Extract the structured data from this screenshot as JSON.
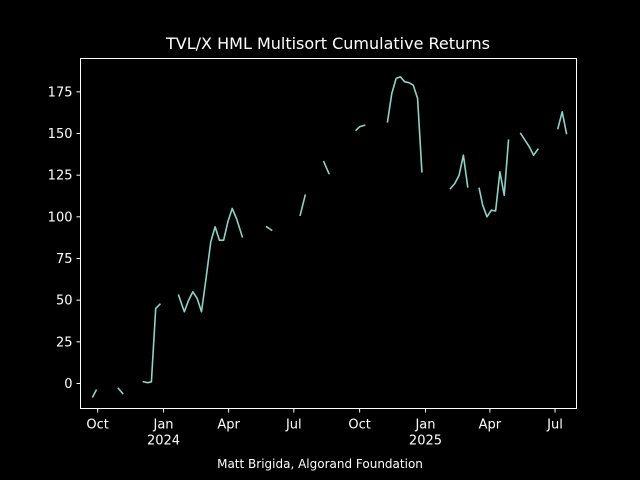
{
  "chart_data": {
    "type": "line",
    "title": "TVL/X HML Multisort Cumulative Returns",
    "xlabel": "",
    "ylabel": "",
    "x_range": [
      "2023-09-07",
      "2025-07-31"
    ],
    "ylim": [
      -15,
      195
    ],
    "grid": false,
    "legend": "none",
    "line_color": "#8dd3c7",
    "yticks": [
      0,
      25,
      50,
      75,
      100,
      125,
      150,
      175
    ],
    "xticks": [
      {
        "date": "2023-10-01",
        "label": "Oct",
        "sublabel": ""
      },
      {
        "date": "2024-01-01",
        "label": "Jan",
        "sublabel": "2024"
      },
      {
        "date": "2024-04-01",
        "label": "Apr",
        "sublabel": ""
      },
      {
        "date": "2024-07-01",
        "label": "Jul",
        "sublabel": ""
      },
      {
        "date": "2024-10-01",
        "label": "Oct",
        "sublabel": ""
      },
      {
        "date": "2025-01-01",
        "label": "Jan",
        "sublabel": "2025"
      },
      {
        "date": "2025-04-01",
        "label": "Apr",
        "sublabel": ""
      },
      {
        "date": "2025-07-01",
        "label": "Jul",
        "sublabel": ""
      }
    ],
    "segments": [
      [
        [
          "2023-09-24",
          -8
        ],
        [
          "2023-09-29",
          -4
        ]
      ],
      [
        [
          "2023-10-30",
          -3
        ],
        [
          "2023-11-05",
          -6
        ]
      ],
      [
        [
          "2023-12-04",
          1
        ],
        [
          "2023-12-10",
          0.5
        ],
        [
          "2023-12-15",
          1
        ],
        [
          "2023-12-21",
          45
        ],
        [
          "2023-12-27",
          47.5
        ]
      ],
      [
        [
          "2024-01-22",
          53
        ],
        [
          "2024-01-30",
          43
        ],
        [
          "2024-02-05",
          50
        ],
        [
          "2024-02-11",
          55
        ],
        [
          "2024-02-17",
          51
        ],
        [
          "2024-02-23",
          43
        ],
        [
          "2024-02-29",
          62
        ],
        [
          "2024-03-07",
          85
        ],
        [
          "2024-03-13",
          94
        ],
        [
          "2024-03-19",
          86
        ],
        [
          "2024-03-25",
          86
        ],
        [
          "2024-03-31",
          97
        ],
        [
          "2024-04-06",
          105
        ],
        [
          "2024-04-12",
          99
        ],
        [
          "2024-04-20",
          88
        ]
      ],
      [
        [
          "2024-05-24",
          94
        ],
        [
          "2024-05-31",
          92
        ]
      ],
      [
        [
          "2024-07-10",
          101
        ],
        [
          "2024-07-17",
          113
        ]
      ],
      [
        [
          "2024-08-12",
          133
        ],
        [
          "2024-08-19",
          126
        ]
      ],
      [
        [
          "2024-09-26",
          152
        ],
        [
          "2024-10-01",
          154
        ],
        [
          "2024-10-08",
          155
        ]
      ],
      [
        [
          "2024-11-09",
          157
        ],
        [
          "2024-11-15",
          174
        ],
        [
          "2024-11-21",
          183
        ],
        [
          "2024-11-27",
          184
        ],
        [
          "2024-12-03",
          181
        ],
        [
          "2024-12-09",
          180.5
        ],
        [
          "2024-12-15",
          179
        ],
        [
          "2024-12-21",
          171
        ],
        [
          "2024-12-27",
          127
        ]
      ],
      [
        [
          "2025-02-05",
          117
        ],
        [
          "2025-02-11",
          120
        ],
        [
          "2025-02-17",
          125
        ],
        [
          "2025-02-23",
          137
        ],
        [
          "2025-03-01",
          118
        ]
      ],
      [
        [
          "2025-03-17",
          117
        ],
        [
          "2025-03-22",
          107
        ],
        [
          "2025-03-28",
          100
        ],
        [
          "2025-04-03",
          104
        ],
        [
          "2025-04-09",
          103.5
        ],
        [
          "2025-04-15",
          127
        ],
        [
          "2025-04-21",
          113
        ],
        [
          "2025-04-27",
          146
        ]
      ],
      [
        [
          "2025-05-14",
          150
        ],
        [
          "2025-05-20",
          146
        ],
        [
          "2025-05-26",
          142
        ],
        [
          "2025-06-01",
          137
        ],
        [
          "2025-06-07",
          140.5
        ]
      ],
      [
        [
          "2025-07-05",
          153
        ],
        [
          "2025-07-11",
          163
        ],
        [
          "2025-07-17",
          150
        ]
      ]
    ]
  },
  "footer": {
    "credit": "Matt Brigida, Algorand Foundation"
  }
}
